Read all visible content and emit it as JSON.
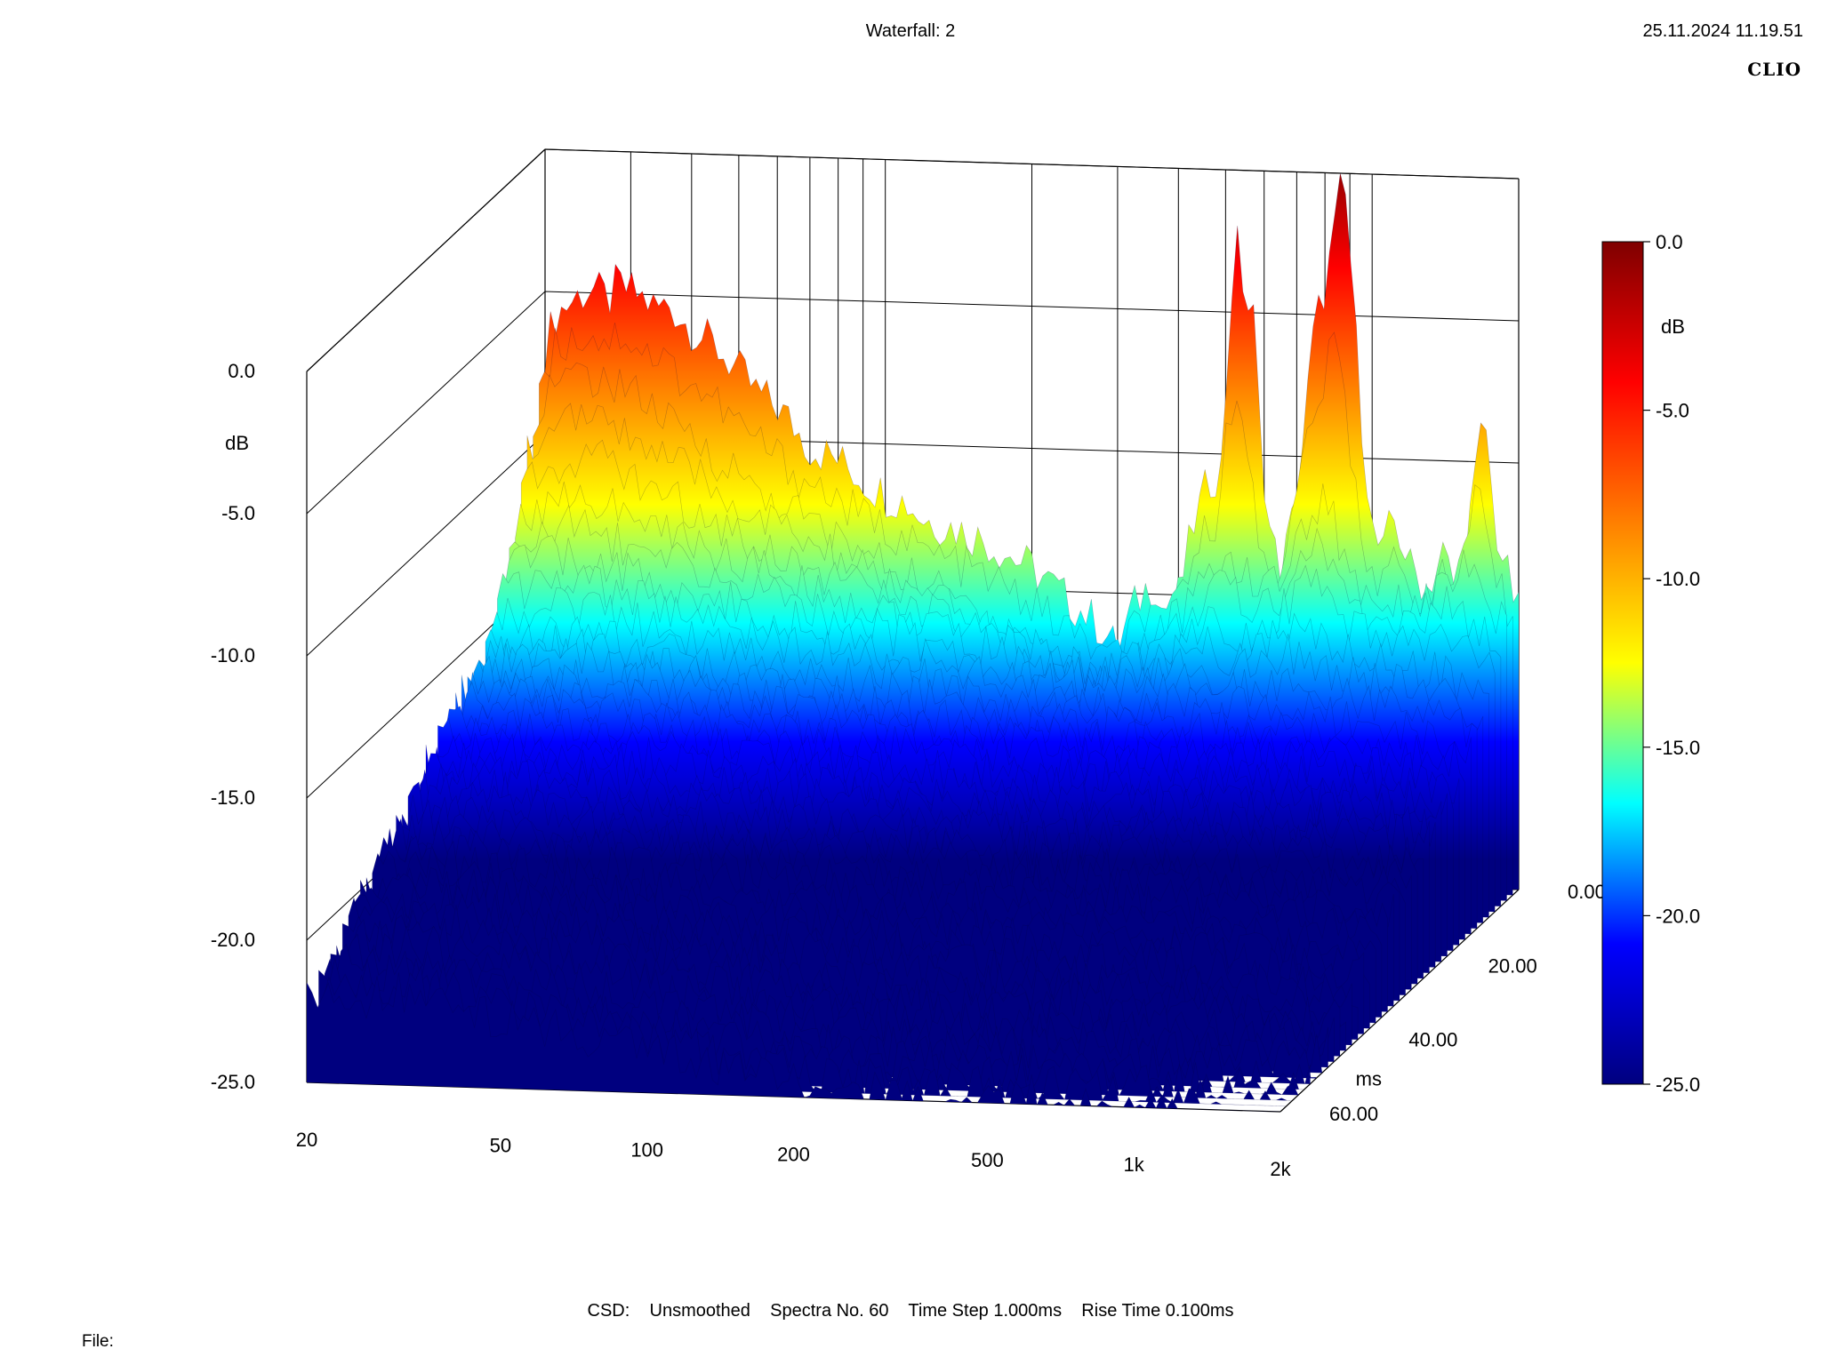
{
  "header": {
    "title": "Waterfall: 2",
    "timestamp": "25.11.2024 11.19.51",
    "brand": "CLIO"
  },
  "footer": {
    "csd_line": "CSD:    Unsmoothed    Spectra No. 60    Time Step 1.000ms    Rise Time 0.100ms",
    "file_label": "File:"
  },
  "chart_data": {
    "type": "waterfall",
    "title": "Waterfall: 2",
    "x_axis": {
      "label": "",
      "scale": "log",
      "range_hz": [
        20,
        2000
      ],
      "ticks": [
        {
          "value": 20,
          "label": "20"
        },
        {
          "value": 50,
          "label": "50"
        },
        {
          "value": 100,
          "label": "100"
        },
        {
          "value": 200,
          "label": "200"
        },
        {
          "value": 500,
          "label": "500"
        },
        {
          "value": 1000,
          "label": "1k"
        },
        {
          "value": 2000,
          "label": "2k"
        }
      ]
    },
    "y_axis": {
      "unit_label": "dB",
      "range": [
        -25,
        0
      ],
      "ticks": [
        {
          "value": 0,
          "label": "0.0"
        },
        {
          "value": -5,
          "label": "-5.0"
        },
        {
          "value": -10,
          "label": "-10.0"
        },
        {
          "value": -15,
          "label": "-15.0"
        },
        {
          "value": -20,
          "label": "-20.0"
        },
        {
          "value": -25,
          "label": "-25.0"
        }
      ]
    },
    "z_axis": {
      "unit_label": "ms",
      "range": [
        0,
        60
      ],
      "ticks": [
        {
          "value": 0,
          "label": "0.00"
        },
        {
          "value": 20,
          "label": "20.00"
        },
        {
          "value": 40,
          "label": "40.00"
        },
        {
          "value": 60,
          "label": "60.00"
        }
      ]
    },
    "colorbar": {
      "unit_label": "dB",
      "range": [
        -25,
        0
      ],
      "ticks": [
        {
          "value": 0,
          "label": "0.0"
        },
        {
          "value": -5,
          "label": "-5.0"
        },
        {
          "value": -10,
          "label": "-10.0"
        },
        {
          "value": -15,
          "label": "-15.0"
        },
        {
          "value": -20,
          "label": "-20.0"
        },
        {
          "value": -25,
          "label": "-25.0"
        }
      ],
      "colors": [
        "#00007f",
        "#0000ff",
        "#00ffff",
        "#ffff00",
        "#ff7f00",
        "#ff0000",
        "#7f0000"
      ]
    },
    "spectra_count": 60,
    "time_step_ms": 1.0,
    "rise_time_ms": 0.1,
    "smoothing": "Unsmoothed",
    "series": [
      {
        "time_ms": 0,
        "points": [
          [
            20,
            -7.0
          ],
          [
            21,
            -5.8
          ],
          [
            23,
            -5.2
          ],
          [
            25,
            -4.8
          ],
          [
            27,
            -5.3
          ],
          [
            28,
            -4.7
          ],
          [
            31,
            -5.0
          ],
          [
            34,
            -5.5
          ],
          [
            36,
            -5.3
          ],
          [
            39,
            -6.0
          ],
          [
            45,
            -6.8
          ],
          [
            50,
            -7.6
          ],
          [
            55,
            -8.4
          ],
          [
            60,
            -8.8
          ],
          [
            65,
            -9.5
          ],
          [
            70,
            -10.2
          ],
          [
            80,
            -10.6
          ],
          [
            90,
            -11.3
          ],
          [
            100,
            -11.8
          ],
          [
            110,
            -12.0
          ],
          [
            120,
            -12.6
          ],
          [
            140,
            -12.9
          ],
          [
            160,
            -13.3
          ],
          [
            180,
            -13.8
          ],
          [
            200,
            -14.2
          ],
          [
            220,
            -14.8
          ],
          [
            240,
            -15.4
          ],
          [
            260,
            -15.8
          ],
          [
            280,
            -16.3
          ],
          [
            300,
            -17.0
          ],
          [
            320,
            -15.6
          ],
          [
            350,
            -14.6
          ],
          [
            380,
            -16.2
          ],
          [
            400,
            -15.0
          ],
          [
            430,
            -12.5
          ],
          [
            460,
            -11.0
          ],
          [
            490,
            -10.5
          ],
          [
            510,
            -5.2
          ],
          [
            520,
            -3.0
          ],
          [
            530,
            -2.6
          ],
          [
            540,
            -3.2
          ],
          [
            550,
            -6.0
          ],
          [
            560,
            -4.2
          ],
          [
            570,
            -5.0
          ],
          [
            590,
            -9.5
          ],
          [
            620,
            -13.0
          ],
          [
            650,
            -14.0
          ],
          [
            680,
            -12.6
          ],
          [
            720,
            -9.5
          ],
          [
            760,
            -5.5
          ],
          [
            800,
            -4.0
          ],
          [
            830,
            -2.5
          ],
          [
            850,
            -1.2
          ],
          [
            870,
            0.0
          ],
          [
            890,
            -1.5
          ],
          [
            910,
            -3.8
          ],
          [
            950,
            -8.5
          ],
          [
            1000,
            -12.5
          ],
          [
            1050,
            -13.5
          ],
          [
            1100,
            -12.0
          ],
          [
            1200,
            -13.8
          ],
          [
            1300,
            -14.5
          ],
          [
            1400,
            -13.2
          ],
          [
            1500,
            -14.8
          ],
          [
            1600,
            -11.5
          ],
          [
            1650,
            -10.0
          ],
          [
            1700,
            -8.0
          ],
          [
            1750,
            -10.8
          ],
          [
            1800,
            -12.5
          ],
          [
            1900,
            -14.0
          ],
          [
            2000,
            -15.3
          ]
        ]
      },
      {
        "time_ms": 3,
        "points": [
          [
            20,
            -9.0
          ],
          [
            21,
            -8.3
          ],
          [
            22,
            -7.7
          ],
          [
            24,
            -7.8
          ],
          [
            26,
            -7.4
          ],
          [
            28,
            -8.0
          ],
          [
            30,
            -7.5
          ],
          [
            33,
            -8.2
          ],
          [
            36,
            -8.8
          ],
          [
            40,
            -9.4
          ],
          [
            45,
            -9.9
          ],
          [
            50,
            -10.6
          ],
          [
            55,
            -11.0
          ],
          [
            60,
            -11.6
          ],
          [
            70,
            -12.1
          ],
          [
            80,
            -12.8
          ],
          [
            90,
            -13.3
          ],
          [
            100,
            -13.6
          ],
          [
            120,
            -14.3
          ],
          [
            140,
            -14.8
          ],
          [
            160,
            -15.2
          ],
          [
            180,
            -15.7
          ],
          [
            200,
            -16.1
          ],
          [
            250,
            -16.9
          ],
          [
            300,
            -17.6
          ],
          [
            350,
            -16.4
          ],
          [
            400,
            -15.7
          ],
          [
            450,
            -14.9
          ],
          [
            500,
            -13.6
          ],
          [
            550,
            -13.2
          ],
          [
            600,
            -14.3
          ],
          [
            700,
            -13.6
          ],
          [
            800,
            -11.5
          ],
          [
            850,
            -10.8
          ],
          [
            900,
            -12.4
          ],
          [
            1000,
            -14.2
          ],
          [
            1200,
            -14.7
          ],
          [
            1400,
            -14.5
          ],
          [
            1600,
            -13.3
          ],
          [
            1800,
            -14.4
          ],
          [
            2000,
            -15.5
          ]
        ]
      },
      {
        "time_ms": 8,
        "points": [
          [
            20,
            -12.5
          ],
          [
            23,
            -11.8
          ],
          [
            27,
            -11.5
          ],
          [
            30,
            -11.8
          ],
          [
            35,
            -12.2
          ],
          [
            40,
            -12.6
          ],
          [
            50,
            -13.1
          ],
          [
            60,
            -13.6
          ],
          [
            80,
            -14.2
          ],
          [
            100,
            -14.8
          ],
          [
            150,
            -15.6
          ],
          [
            200,
            -16.3
          ],
          [
            300,
            -17.3
          ],
          [
            400,
            -16.8
          ],
          [
            500,
            -16.0
          ],
          [
            600,
            -16.4
          ],
          [
            800,
            -15.4
          ],
          [
            1000,
            -16.0
          ],
          [
            1500,
            -16.6
          ],
          [
            2000,
            -17.4
          ]
        ]
      },
      {
        "time_ms": 15,
        "points": [
          [
            20,
            -15.5
          ],
          [
            30,
            -15.0
          ],
          [
            40,
            -15.4
          ],
          [
            60,
            -16.0
          ],
          [
            100,
            -16.8
          ],
          [
            200,
            -17.8
          ],
          [
            400,
            -18.3
          ],
          [
            600,
            -17.9
          ],
          [
            1000,
            -18.4
          ],
          [
            2000,
            -19.3
          ]
        ]
      }
    ]
  }
}
